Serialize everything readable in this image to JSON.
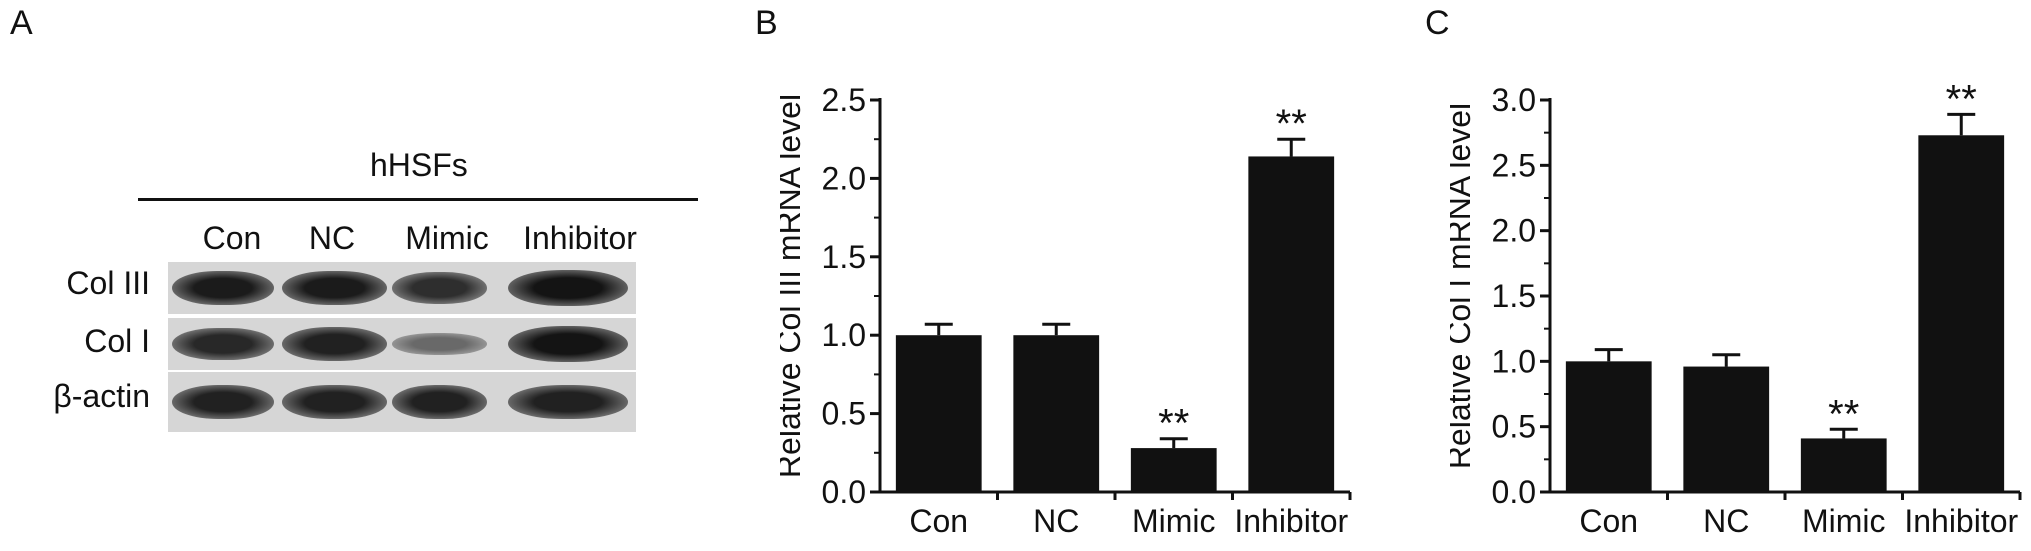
{
  "panels": {
    "a": {
      "letter": "A",
      "cell_label": "hHSFs",
      "lanes": [
        "Con",
        "NC",
        "Mimic",
        "Inhibitor"
      ],
      "rows": [
        {
          "label": "Col III",
          "intensity": [
            0.95,
            0.95,
            0.8,
            1.0
          ]
        },
        {
          "label": "Col I",
          "intensity": [
            0.85,
            0.9,
            0.35,
            1.0
          ]
        },
        {
          "label": "β-actin",
          "intensity": [
            0.9,
            0.9,
            0.9,
            0.9
          ]
        }
      ]
    },
    "b": {
      "letter": "B"
    },
    "c": {
      "letter": "C"
    }
  },
  "chart_data": [
    {
      "type": "bar",
      "categories": [
        "Con",
        "NC",
        "Mimic",
        "Inhibitor"
      ],
      "values": [
        1.0,
        1.0,
        0.28,
        2.14
      ],
      "errors": [
        0.07,
        0.07,
        0.06,
        0.11
      ],
      "annotations": [
        "",
        "",
        "**",
        "**"
      ],
      "ylabel": "Relative Col III mRNA level",
      "ylim": [
        0,
        2.5
      ],
      "yticks": [
        "0.0",
        "0.5",
        "1.0",
        "1.5",
        "2.0",
        "2.5"
      ],
      "bar_color": "#111111"
    },
    {
      "type": "bar",
      "categories": [
        "Con",
        "NC",
        "Mimic",
        "Inhibitor"
      ],
      "values": [
        1.0,
        0.96,
        0.41,
        2.73
      ],
      "errors": [
        0.09,
        0.09,
        0.07,
        0.16
      ],
      "annotations": [
        "",
        "",
        "**",
        "**"
      ],
      "ylabel": "Relative Col I mRNA level",
      "ylim": [
        0,
        3.0
      ],
      "yticks": [
        "0.0",
        "0.5",
        "1.0",
        "1.5",
        "2.0",
        "2.5",
        "3.0"
      ],
      "bar_color": "#111111"
    }
  ]
}
